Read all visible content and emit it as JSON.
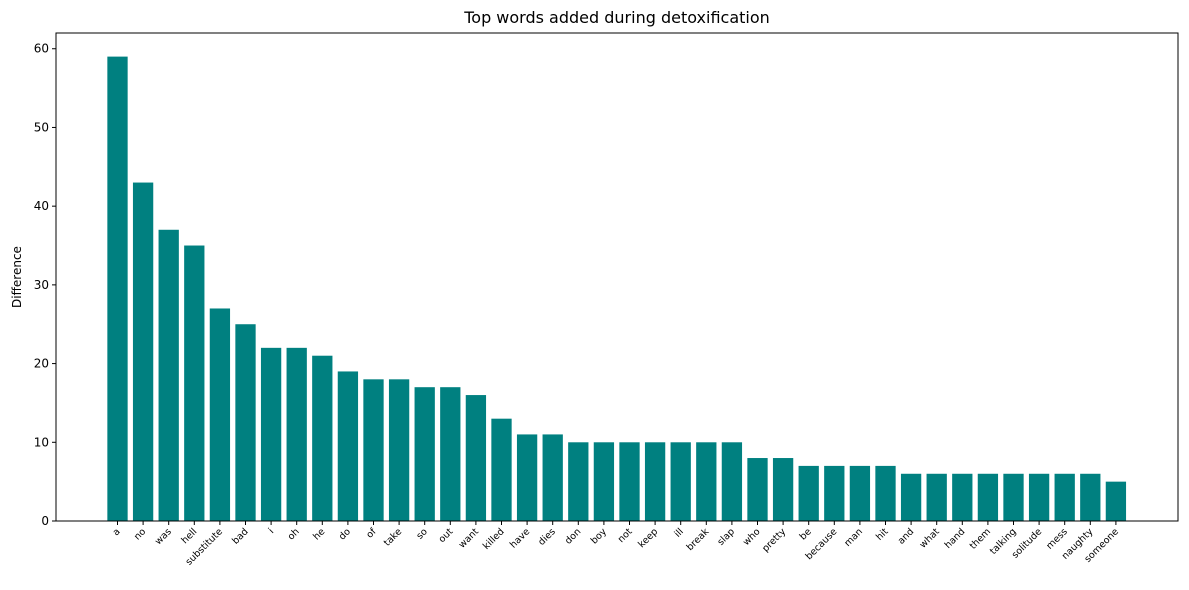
{
  "chart_data": {
    "type": "bar",
    "title": "Top words added during detoxification",
    "xlabel": "",
    "ylabel": "Difference",
    "ylim": [
      0,
      62
    ],
    "yticks": [
      0,
      10,
      20,
      30,
      40,
      50,
      60
    ],
    "grid": false,
    "bar_color": "#008080",
    "categories": [
      "a",
      "no",
      "was",
      "hell",
      "substitute",
      "bad",
      "i",
      "oh",
      "he",
      "do",
      "of",
      "take",
      "so",
      "out",
      "want",
      "killed",
      "have",
      "dies",
      "don",
      "boy",
      "not",
      "keep",
      "ill",
      "break",
      "slap",
      "who",
      "pretty",
      "be",
      "because",
      "man",
      "hit",
      "and",
      "what",
      "hand",
      "them",
      "talking",
      "solitude",
      "mess",
      "naughty",
      "someone"
    ],
    "values": [
      59,
      43,
      37,
      35,
      27,
      25,
      22,
      22,
      21,
      19,
      18,
      18,
      17,
      17,
      16,
      13,
      11,
      11,
      10,
      10,
      10,
      10,
      10,
      10,
      10,
      8,
      8,
      7,
      7,
      7,
      7,
      6,
      6,
      6,
      6,
      6,
      6,
      6,
      6,
      5
    ]
  }
}
